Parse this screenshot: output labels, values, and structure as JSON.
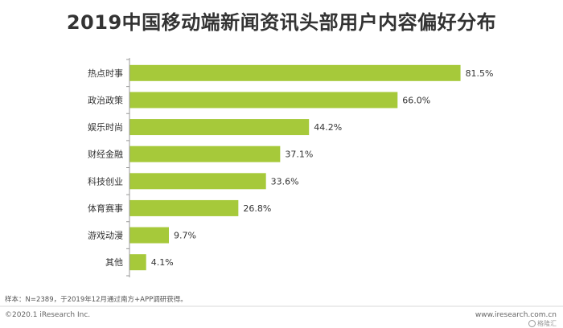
{
  "chart_data": {
    "type": "bar",
    "orientation": "horizontal",
    "title": "2019中国移动端新闻资讯头部用户内容偏好分布",
    "categories": [
      "热点时事",
      "政治政策",
      "娱乐时尚",
      "财经金融",
      "科技创业",
      "体育赛事",
      "游戏动漫",
      "其他"
    ],
    "values": [
      81.5,
      66.0,
      44.2,
      37.1,
      33.6,
      26.8,
      9.7,
      4.1
    ],
    "value_labels": [
      "81.5%",
      "66.0%",
      "44.2%",
      "37.1%",
      "33.6%",
      "26.8%",
      "9.7%",
      "4.1%"
    ],
    "unit": "%",
    "xlim": [
      0,
      100
    ],
    "grid": false,
    "legend": "none",
    "colors": {
      "bar": "#a6c93a",
      "axis": "#999999",
      "label": "#333333"
    }
  },
  "footer": {
    "sample_note": "样本：N=2389，于2019年12月通过南方+APP调研获得。",
    "copyright": "©2020.1 iResearch Inc.",
    "website": "www.iresearch.com.cn",
    "watermark": "格隆汇"
  }
}
